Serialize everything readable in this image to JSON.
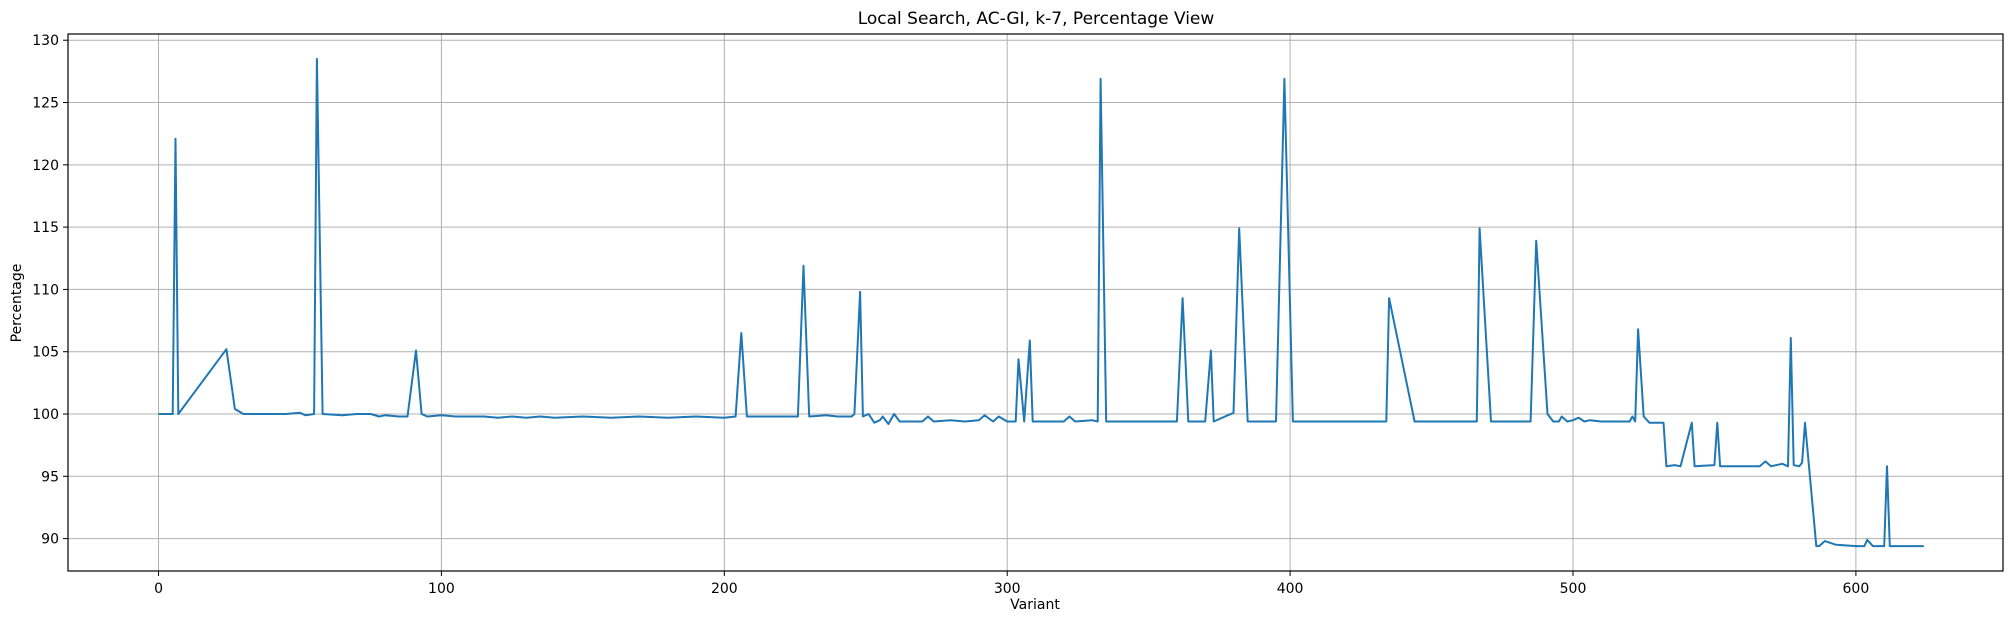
{
  "chart_data": {
    "type": "line",
    "title": "Local Search, AC-GI, k-7, Percentage View",
    "xlabel": "Variant",
    "ylabel": "Percentage",
    "xlim": [
      -32,
      652
    ],
    "ylim": [
      87.4,
      130.5
    ],
    "xticks": [
      0,
      100,
      200,
      300,
      400,
      500,
      600
    ],
    "yticks": [
      90,
      95,
      100,
      105,
      110,
      115,
      120,
      125,
      130
    ],
    "grid": true,
    "color": "#1f77b4",
    "series": [
      {
        "points": [
          [
            0,
            100
          ],
          [
            5,
            100
          ],
          [
            6,
            122.1
          ],
          [
            7,
            100
          ],
          [
            24,
            105.2
          ],
          [
            27,
            100.4
          ],
          [
            30,
            100
          ],
          [
            40,
            100
          ],
          [
            45,
            100
          ],
          [
            50,
            100.1
          ],
          [
            52,
            99.9
          ],
          [
            55,
            100
          ],
          [
            56,
            128.5
          ],
          [
            58,
            100
          ],
          [
            65,
            99.9
          ],
          [
            70,
            100
          ],
          [
            75,
            100
          ],
          [
            78,
            99.8
          ],
          [
            80,
            99.9
          ],
          [
            85,
            99.8
          ],
          [
            88,
            99.8
          ],
          [
            91,
            105.1
          ],
          [
            93,
            100
          ],
          [
            95,
            99.8
          ],
          [
            100,
            99.9
          ],
          [
            105,
            99.8
          ],
          [
            110,
            99.8
          ],
          [
            115,
            99.8
          ],
          [
            120,
            99.7
          ],
          [
            125,
            99.8
          ],
          [
            130,
            99.7
          ],
          [
            135,
            99.8
          ],
          [
            140,
            99.7
          ],
          [
            150,
            99.8
          ],
          [
            160,
            99.7
          ],
          [
            170,
            99.8
          ],
          [
            180,
            99.7
          ],
          [
            190,
            99.8
          ],
          [
            200,
            99.7
          ],
          [
            204,
            99.8
          ],
          [
            206,
            106.5
          ],
          [
            208,
            99.8
          ],
          [
            220,
            99.8
          ],
          [
            226,
            99.8
          ],
          [
            228,
            111.9
          ],
          [
            230,
            99.8
          ],
          [
            236,
            99.9
          ],
          [
            240,
            99.8
          ],
          [
            245,
            99.8
          ],
          [
            246,
            100
          ],
          [
            248,
            109.8
          ],
          [
            249,
            99.8
          ],
          [
            251,
            100
          ],
          [
            253,
            99.3
          ],
          [
            255,
            99.5
          ],
          [
            256,
            99.8
          ],
          [
            258,
            99.2
          ],
          [
            260,
            100
          ],
          [
            262,
            99.4
          ],
          [
            270,
            99.4
          ],
          [
            272,
            99.8
          ],
          [
            274,
            99.4
          ],
          [
            280,
            99.5
          ],
          [
            285,
            99.4
          ],
          [
            290,
            99.5
          ],
          [
            292,
            99.9
          ],
          [
            295,
            99.4
          ],
          [
            297,
            99.8
          ],
          [
            300,
            99.4
          ],
          [
            303,
            99.4
          ],
          [
            304,
            104.4
          ],
          [
            306,
            99.4
          ],
          [
            308,
            105.9
          ],
          [
            309,
            99.4
          ],
          [
            320,
            99.4
          ],
          [
            322,
            99.8
          ],
          [
            324,
            99.4
          ],
          [
            330,
            99.5
          ],
          [
            332,
            99.4
          ],
          [
            333,
            126.9
          ],
          [
            335,
            99.4
          ],
          [
            350,
            99.4
          ],
          [
            360,
            99.4
          ],
          [
            362,
            109.3
          ],
          [
            364,
            99.4
          ],
          [
            370,
            99.4
          ],
          [
            372,
            105.1
          ],
          [
            373,
            99.4
          ],
          [
            380,
            100.1
          ],
          [
            382,
            114.9
          ],
          [
            385,
            99.4
          ],
          [
            395,
            99.4
          ],
          [
            398,
            126.9
          ],
          [
            401,
            99.4
          ],
          [
            415,
            99.4
          ],
          [
            420,
            99.4
          ],
          [
            434,
            99.4
          ],
          [
            435,
            109.3
          ],
          [
            444,
            99.4
          ],
          [
            460,
            99.4
          ],
          [
            466,
            99.4
          ],
          [
            467,
            114.9
          ],
          [
            471,
            99.4
          ],
          [
            485,
            99.4
          ],
          [
            487,
            113.9
          ],
          [
            491,
            100
          ],
          [
            493,
            99.4
          ],
          [
            495,
            99.4
          ],
          [
            496,
            99.8
          ],
          [
            498,
            99.4
          ],
          [
            500,
            99.5
          ],
          [
            502,
            99.7
          ],
          [
            504,
            99.4
          ],
          [
            506,
            99.5
          ],
          [
            510,
            99.4
          ],
          [
            520,
            99.4
          ],
          [
            521,
            99.8
          ],
          [
            522,
            99.4
          ],
          [
            523,
            106.8
          ],
          [
            525,
            99.8
          ],
          [
            527,
            99.3
          ],
          [
            532,
            99.3
          ],
          [
            533,
            95.8
          ],
          [
            536,
            95.9
          ],
          [
            538,
            95.8
          ],
          [
            542,
            99.3
          ],
          [
            543,
            95.8
          ],
          [
            550,
            95.9
          ],
          [
            551,
            99.3
          ],
          [
            552,
            95.8
          ],
          [
            556,
            95.8
          ],
          [
            560,
            95.8
          ],
          [
            566,
            95.8
          ],
          [
            568,
            96.2
          ],
          [
            570,
            95.8
          ],
          [
            574,
            96
          ],
          [
            576,
            95.8
          ],
          [
            577,
            106.1
          ],
          [
            578,
            95.9
          ],
          [
            580,
            95.8
          ],
          [
            581,
            96.1
          ],
          [
            582,
            99.3
          ],
          [
            586,
            89.4
          ],
          [
            587,
            89.4
          ],
          [
            589,
            89.8
          ],
          [
            593,
            89.5
          ],
          [
            600,
            89.4
          ],
          [
            603,
            89.4
          ],
          [
            604,
            89.9
          ],
          [
            606,
            89.4
          ],
          [
            608,
            89.4
          ],
          [
            610,
            89.4
          ],
          [
            611,
            95.8
          ],
          [
            612,
            89.4
          ],
          [
            620,
            89.4
          ],
          [
            624,
            89.4
          ]
        ]
      }
    ]
  }
}
